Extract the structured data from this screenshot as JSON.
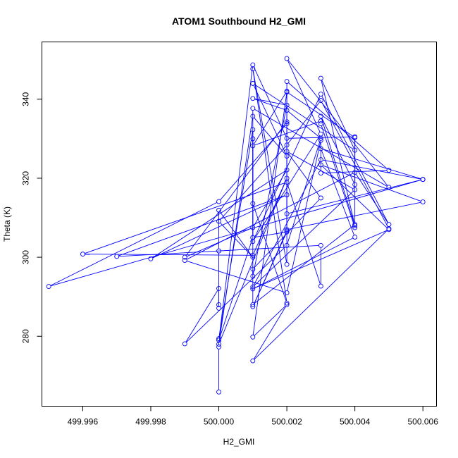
{
  "chart_data": {
    "type": "line",
    "title": "ATOM1 Southbound H2_GMI",
    "xlabel": "H2_GMI",
    "ylabel": "Theta (K)",
    "xlim": [
      499.9948,
      500.0064
    ],
    "ylim": [
      262.3,
      354.5
    ],
    "x_ticks": [
      499.996,
      499.998,
      500.0,
      500.002,
      500.004,
      500.006
    ],
    "x_tick_labels": [
      "499.996",
      "499.998",
      "500.000",
      "500.002",
      "500.004",
      "500.006"
    ],
    "y_ticks": [
      280,
      300,
      320,
      340
    ],
    "y_tick_labels": [
      "280",
      "300",
      "320",
      "340"
    ],
    "grid": false,
    "series": [
      {
        "color": "#0000ff",
        "points": [
          [
            500.0,
            265.9
          ],
          [
            500.0,
            277.3
          ],
          [
            500.0,
            279.4
          ],
          [
            500.001,
            332.3
          ],
          [
            500.001,
            305.0
          ],
          [
            500.0,
            279.0
          ],
          [
            500.001,
            348.7
          ],
          [
            500.002,
            330.1
          ],
          [
            500.004,
            330.5
          ],
          [
            500.004,
            318.4
          ],
          [
            500.003,
            335.7
          ],
          [
            500.004,
            308.0
          ],
          [
            500.003,
            345.3
          ],
          [
            500.004,
            327.1
          ],
          [
            500.001,
            344.0
          ],
          [
            500.002,
            325.6
          ],
          [
            500.001,
            335.7
          ],
          [
            500.0,
            278.0
          ],
          [
            500.002,
            320.0
          ],
          [
            500.001,
            300.5
          ],
          [
            499.996,
            300.8
          ],
          [
            500.002,
            319.0
          ],
          [
            500.003,
            292.7
          ],
          [
            500.003,
            303.0
          ],
          [
            499.997,
            300.2
          ],
          [
            500.002,
            315.8
          ],
          [
            499.998,
            299.6
          ],
          [
            500.002,
            322.1
          ],
          [
            500.001,
            307.5
          ],
          [
            499.999,
            300.0
          ],
          [
            500.002,
            334.3
          ],
          [
            500.002,
            307.0
          ],
          [
            500.006,
            314.0
          ],
          [
            500.003,
            323.4
          ],
          [
            500.005,
            307.0
          ],
          [
            500.001,
            292.0
          ],
          [
            500.004,
            305.1
          ],
          [
            500.003,
            327.5
          ],
          [
            500.006,
            319.7
          ],
          [
            500.002,
            311.0
          ],
          [
            500.002,
            344.5
          ],
          [
            500.005,
            322.0
          ],
          [
            500.003,
            321.3
          ],
          [
            500.003,
            329.6
          ],
          [
            500.002,
            291.0
          ],
          [
            499.999,
            299.2
          ],
          [
            500.004,
            321.5
          ],
          [
            500.005,
            308.3
          ],
          [
            500.003,
            341.3
          ],
          [
            500.001,
            304.0
          ],
          [
            500.003,
            331.2
          ],
          [
            500.002,
            350.3
          ],
          [
            500.005,
            317.7
          ],
          [
            500.001,
            337.7
          ],
          [
            500.001,
            313.6
          ],
          [
            500.002,
            288.4
          ],
          [
            500.001,
            347.7
          ],
          [
            500.002,
            298.2
          ],
          [
            500.002,
            333.8
          ],
          [
            500.0,
            314.1
          ],
          [
            499.995,
            292.6
          ],
          [
            500.006,
            319.7
          ],
          [
            500.003,
            324.7
          ],
          [
            500.001,
            292.5
          ],
          [
            500.004,
            317.1
          ],
          [
            500.002,
            326.8
          ],
          [
            500.003,
            315.0
          ],
          [
            500.001,
            297.0
          ],
          [
            500.001,
            288.0
          ],
          [
            500.004,
            308.3
          ],
          [
            500.004,
            330.3
          ],
          [
            500.002,
            341.8
          ],
          [
            500.001,
            279.8
          ],
          [
            500.002,
            288.0
          ],
          [
            500.001,
            273.8
          ],
          [
            500.005,
            307.2
          ],
          [
            500.003,
            339.7
          ],
          [
            500.002,
            328.4
          ],
          [
            500.0,
            309.1
          ],
          [
            500.001,
            300.0
          ],
          [
            500.0,
            311.9
          ],
          [
            500.0,
            301.6
          ],
          [
            500.0,
            287.1
          ],
          [
            500.0,
            288.0
          ],
          [
            500.0,
            292.1
          ],
          [
            499.999,
            278.1
          ],
          [
            500.002,
            303.0
          ],
          [
            500.003,
            330.1
          ],
          [
            500.002,
            337.2
          ],
          [
            500.001,
            340.2
          ],
          [
            500.002,
            338.5
          ],
          [
            500.001,
            295.2
          ],
          [
            500.001,
            330.0
          ],
          [
            500.001,
            305.0
          ],
          [
            500.002,
            306.4
          ],
          [
            500.001,
            287.5
          ],
          [
            500.002,
            306.7
          ],
          [
            500.002,
            342.0
          ],
          [
            500.001,
            328.2
          ],
          [
            500.003,
            334.5
          ],
          [
            500.003,
            333.8
          ],
          [
            500.004,
            307.5
          ]
        ]
      }
    ]
  }
}
